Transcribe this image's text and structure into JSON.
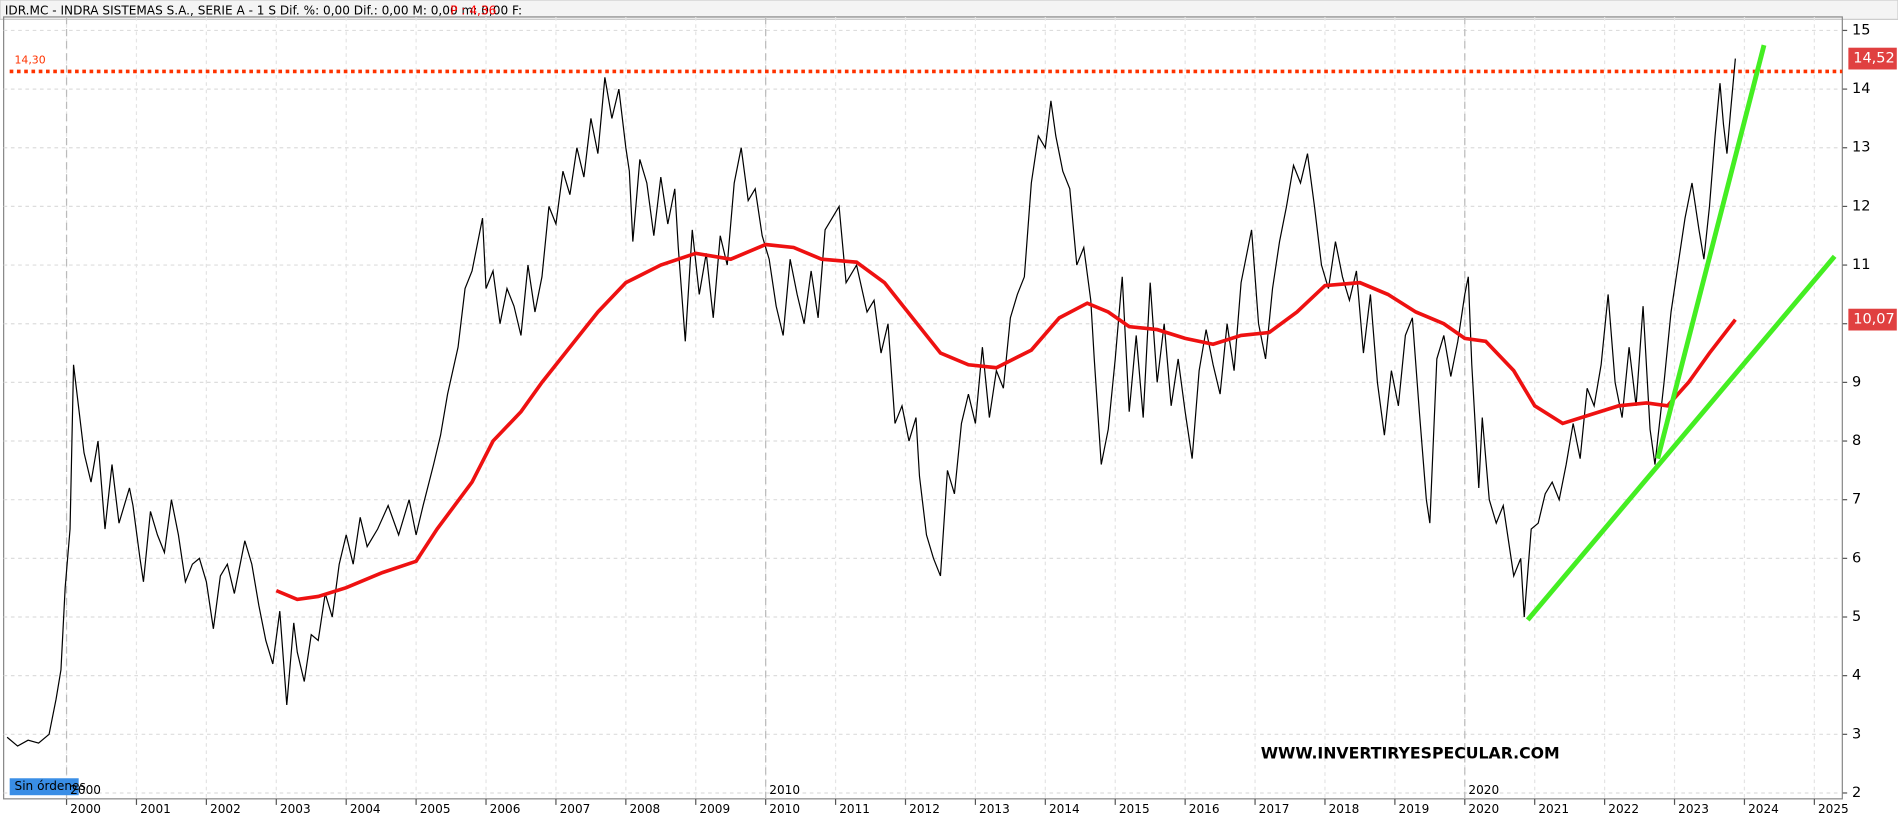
{
  "header": {
    "symbol_text": "IDR.MC - INDRA SISTEMAS S.A., SERIE A -  1 S  Dif. %: 0,00  Dif.: 0,00  M: 0,00  m: 0,00  F:",
    "price_text": "P : 4,36"
  },
  "orders_text": "Sin órdenes",
  "chart_data": {
    "type": "line",
    "watermark": "WWW.INVERTIRYESPECULAR.COM",
    "xlim": [
      1999.1,
      2025.4
    ],
    "ylim": [
      1.9,
      15.23
    ],
    "yticks": [
      2,
      3,
      4,
      5,
      6,
      7,
      8,
      9,
      10,
      11,
      12,
      13,
      14,
      15
    ],
    "xticks": [
      2000,
      2001,
      2002,
      2003,
      2004,
      2005,
      2006,
      2007,
      2008,
      2009,
      2010,
      2011,
      2012,
      2013,
      2014,
      2015,
      2016,
      2017,
      2018,
      2019,
      2020,
      2021,
      2022,
      2023,
      2024,
      2025
    ],
    "decade_ticks": [
      2000,
      2010,
      2020
    ],
    "grid": true,
    "level": {
      "value": 14.3,
      "label": "14,30",
      "color": "#ff3300"
    },
    "last_price": {
      "value": 14.52,
      "label": "14,52",
      "color": "#e04040"
    },
    "ma_last": {
      "value": 10.07,
      "label": "10,07",
      "color": "#e04040"
    },
    "price": {
      "color": "#000000",
      "x": [
        1999.15,
        1999.3,
        1999.45,
        1999.6,
        1999.75,
        1999.85,
        1999.92,
        1999.98,
        2000.05,
        2000.1,
        2000.18,
        2000.25,
        2000.35,
        2000.45,
        2000.55,
        2000.65,
        2000.75,
        2000.9,
        2000.95,
        2001.05,
        2001.1,
        2001.2,
        2001.3,
        2001.4,
        2001.5,
        2001.6,
        2001.7,
        2001.8,
        2001.9,
        2002.0,
        2002.1,
        2002.2,
        2002.3,
        2002.4,
        2002.55,
        2002.65,
        2002.75,
        2002.85,
        2002.95,
        2003.05,
        2003.15,
        2003.25,
        2003.3,
        2003.4,
        2003.5,
        2003.6,
        2003.7,
        2003.8,
        2003.9,
        2004.0,
        2004.1,
        2004.2,
        2004.3,
        2004.45,
        2004.6,
        2004.75,
        2004.9,
        2005.0,
        2005.1,
        2005.25,
        2005.35,
        2005.45,
        2005.6,
        2005.7,
        2005.8,
        2005.95,
        2006.0,
        2006.1,
        2006.2,
        2006.3,
        2006.4,
        2006.5,
        2006.6,
        2006.7,
        2006.8,
        2006.9,
        2007.0,
        2007.1,
        2007.2,
        2007.3,
        2007.4,
        2007.5,
        2007.6,
        2007.7,
        2007.8,
        2007.9,
        2008.0,
        2008.05,
        2008.1,
        2008.2,
        2008.3,
        2008.4,
        2008.5,
        2008.6,
        2008.7,
        2008.75,
        2008.85,
        2008.95,
        2009.05,
        2009.15,
        2009.25,
        2009.35,
        2009.45,
        2009.55,
        2009.65,
        2009.75,
        2009.85,
        2009.95,
        2010.05,
        2010.15,
        2010.25,
        2010.35,
        2010.45,
        2010.55,
        2010.65,
        2010.75,
        2010.85,
        2010.95,
        2011.05,
        2011.15,
        2011.3,
        2011.45,
        2011.55,
        2011.65,
        2011.75,
        2011.85,
        2011.95,
        2012.05,
        2012.15,
        2012.2,
        2012.3,
        2012.4,
        2012.5,
        2012.6,
        2012.7,
        2012.8,
        2012.9,
        2013.0,
        2013.1,
        2013.2,
        2013.3,
        2013.4,
        2013.5,
        2013.6,
        2013.7,
        2013.8,
        2013.9,
        2014.0,
        2014.08,
        2014.15,
        2014.25,
        2014.35,
        2014.45,
        2014.55,
        2014.65,
        2014.7,
        2014.8,
        2014.9,
        2015.0,
        2015.1,
        2015.2,
        2015.3,
        2015.4,
        2015.5,
        2015.6,
        2015.7,
        2015.8,
        2015.9,
        2016.0,
        2016.1,
        2016.2,
        2016.3,
        2016.4,
        2016.5,
        2016.6,
        2016.7,
        2016.8,
        2016.95,
        2017.05,
        2017.15,
        2017.25,
        2017.35,
        2017.45,
        2017.55,
        2017.65,
        2017.75,
        2017.85,
        2017.95,
        2018.05,
        2018.15,
        2018.25,
        2018.35,
        2018.45,
        2018.55,
        2018.65,
        2018.75,
        2018.85,
        2018.95,
        2019.05,
        2019.15,
        2019.25,
        2019.35,
        2019.45,
        2019.5,
        2019.6,
        2019.7,
        2019.8,
        2019.9,
        2020.0,
        2020.05,
        2020.1,
        2020.2,
        2020.25,
        2020.35,
        2020.45,
        2020.55,
        2020.65,
        2020.7,
        2020.8,
        2020.85,
        2020.95,
        2021.05,
        2021.15,
        2021.25,
        2021.35,
        2021.45,
        2021.55,
        2021.65,
        2021.75,
        2021.85,
        2021.95,
        2022.05,
        2022.15,
        2022.25,
        2022.35,
        2022.45,
        2022.55,
        2022.65,
        2022.72,
        2022.85,
        2022.95,
        2023.05,
        2023.15,
        2023.25,
        2023.35,
        2023.42,
        2023.5,
        2023.58,
        2023.65,
        2023.7,
        2023.75,
        2023.8,
        2023.87
      ],
      "values": [
        2.95,
        2.8,
        2.9,
        2.85,
        3.0,
        3.6,
        4.1,
        5.5,
        6.5,
        9.3,
        8.5,
        7.8,
        7.3,
        8.0,
        6.5,
        7.6,
        6.6,
        7.2,
        6.9,
        6.0,
        5.6,
        6.8,
        6.4,
        6.1,
        7.0,
        6.4,
        5.6,
        5.9,
        6.0,
        5.6,
        4.8,
        5.7,
        5.9,
        5.4,
        6.3,
        5.9,
        5.2,
        4.6,
        4.2,
        5.1,
        3.5,
        4.9,
        4.4,
        3.9,
        4.7,
        4.6,
        5.4,
        5.0,
        5.9,
        6.4,
        5.9,
        6.7,
        6.2,
        6.5,
        6.9,
        6.4,
        7.0,
        6.4,
        6.9,
        7.6,
        8.1,
        8.8,
        9.6,
        10.6,
        10.9,
        11.8,
        10.6,
        10.9,
        10.0,
        10.6,
        10.3,
        9.8,
        11.0,
        10.2,
        10.8,
        12.0,
        11.7,
        12.6,
        12.2,
        13.0,
        12.5,
        13.5,
        12.9,
        14.2,
        13.5,
        14.0,
        13.0,
        12.6,
        11.4,
        12.8,
        12.4,
        11.5,
        12.5,
        11.7,
        12.3,
        11.3,
        9.7,
        11.6,
        10.5,
        11.2,
        10.1,
        11.5,
        11.0,
        12.4,
        13.0,
        12.1,
        12.3,
        11.5,
        11.1,
        10.3,
        9.8,
        11.1,
        10.5,
        10.0,
        10.9,
        10.1,
        11.6,
        11.8,
        12.0,
        10.7,
        11.0,
        10.2,
        10.4,
        9.5,
        10.0,
        8.3,
        8.6,
        8.0,
        8.4,
        7.4,
        6.4,
        6.0,
        5.7,
        7.5,
        7.1,
        8.3,
        8.8,
        8.3,
        9.6,
        8.4,
        9.2,
        8.9,
        10.1,
        10.5,
        10.8,
        12.4,
        13.2,
        13.0,
        13.8,
        13.2,
        12.6,
        12.3,
        11.0,
        11.3,
        10.4,
        9.4,
        7.6,
        8.2,
        9.4,
        10.8,
        8.5,
        9.8,
        8.4,
        10.7,
        9.0,
        10.0,
        8.6,
        9.4,
        8.5,
        7.7,
        9.2,
        9.9,
        9.3,
        8.8,
        10.0,
        9.2,
        10.7,
        11.6,
        10.0,
        9.4,
        10.6,
        11.4,
        12.0,
        12.7,
        12.4,
        12.9,
        12.0,
        11.0,
        10.6,
        11.4,
        10.8,
        10.4,
        10.9,
        9.5,
        10.5,
        9.0,
        8.1,
        9.2,
        8.6,
        9.8,
        10.1,
        8.5,
        7.0,
        6.6,
        9.4,
        9.8,
        9.1,
        9.7,
        10.5,
        10.8,
        9.3,
        7.2,
        8.4,
        7.0,
        6.6,
        6.9,
        6.1,
        5.7,
        6.0,
        5.0,
        6.5,
        6.6,
        7.1,
        7.3,
        7.0,
        7.6,
        8.3,
        7.7,
        8.9,
        8.6,
        9.3,
        10.5,
        9.0,
        8.4,
        9.6,
        8.6,
        10.3,
        8.2,
        7.6,
        9.0,
        10.2,
        11.0,
        11.8,
        12.4,
        11.6,
        11.1,
        12.0,
        13.2,
        14.1,
        13.4,
        12.9,
        13.6,
        14.52
      ]
    },
    "moving_average": {
      "color": "#ee1111",
      "x": [
        2003.0,
        2003.3,
        2003.6,
        2004.0,
        2004.5,
        2005.0,
        2005.3,
        2005.8,
        2006.1,
        2006.5,
        2006.8,
        2007.2,
        2007.6,
        2008.0,
        2008.5,
        2009.0,
        2009.5,
        2010.0,
        2010.4,
        2010.8,
        2011.3,
        2011.7,
        2012.1,
        2012.5,
        2012.9,
        2013.3,
        2013.8,
        2014.2,
        2014.6,
        2014.9,
        2015.2,
        2015.6,
        2016.0,
        2016.4,
        2016.8,
        2017.2,
        2017.6,
        2018.0,
        2018.5,
        2018.9,
        2019.3,
        2019.7,
        2020.0,
        2020.3,
        2020.7,
        2021.0,
        2021.4,
        2021.8,
        2022.2,
        2022.6,
        2022.9,
        2023.2,
        2023.5,
        2023.87
      ],
      "values": [
        5.45,
        5.3,
        5.35,
        5.5,
        5.75,
        5.95,
        6.5,
        7.3,
        8.0,
        8.5,
        9.0,
        9.6,
        10.2,
        10.7,
        11.0,
        11.2,
        11.1,
        11.35,
        11.3,
        11.1,
        11.05,
        10.7,
        10.1,
        9.5,
        9.3,
        9.25,
        9.55,
        10.1,
        10.35,
        10.2,
        9.95,
        9.9,
        9.75,
        9.65,
        9.8,
        9.85,
        10.2,
        10.65,
        10.7,
        10.5,
        10.2,
        10.0,
        9.75,
        9.7,
        9.2,
        8.6,
        8.3,
        8.45,
        8.6,
        8.65,
        8.6,
        9.0,
        9.5,
        10.07
      ]
    },
    "trendlines": [
      {
        "color": "#44ee22",
        "x": [
          2020.9,
          2025.29
        ],
        "values": [
          4.95,
          11.15
        ]
      },
      {
        "color": "#44ee22",
        "x": [
          2022.76,
          2024.28
        ],
        "values": [
          7.7,
          14.75
        ]
      }
    ]
  }
}
